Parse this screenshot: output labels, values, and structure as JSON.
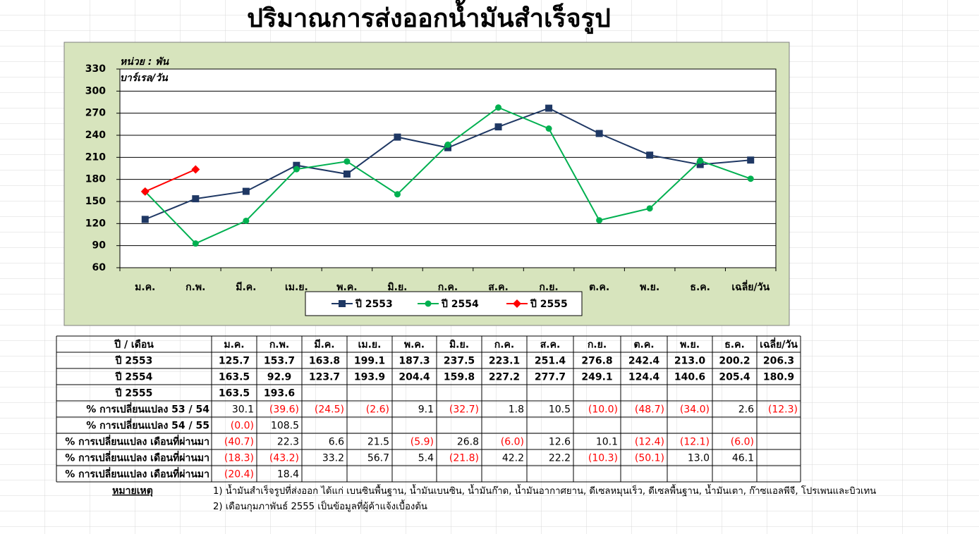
{
  "chart_data": {
    "type": "line",
    "title": "ปริมาณการส่งออกน้ำมันสำเร็จรูป",
    "unit_label": [
      "หน่วย  : พัน",
      "บาร์เรล/วัน"
    ],
    "categories": [
      "ม.ค.",
      "ก.พ.",
      "มี.ค.",
      "เม.ย.",
      "พ.ค.",
      "มิ.ย.",
      "ก.ค.",
      "ส.ค.",
      "ก.ย.",
      "ต.ค.",
      "พ.ย.",
      "ธ.ค.",
      "เฉลี่ย/วัน"
    ],
    "series": [
      {
        "name": "ปี  2553",
        "color": "#1f3864",
        "marker": "square",
        "values": [
          125.7,
          153.7,
          163.8,
          199.1,
          187.3,
          237.5,
          223.1,
          251.4,
          276.8,
          242.4,
          213.0,
          200.2,
          206.3
        ]
      },
      {
        "name": "ปี  2554",
        "color": "#00b050",
        "marker": "circle",
        "values": [
          163.5,
          92.9,
          123.7,
          193.9,
          204.4,
          159.8,
          227.2,
          277.7,
          249.1,
          124.4,
          140.6,
          205.4,
          180.9
        ]
      },
      {
        "name": "ปี  2555",
        "color": "#ff0000",
        "marker": "diamond",
        "values": [
          163.5,
          193.6,
          null,
          null,
          null,
          null,
          null,
          null,
          null,
          null,
          null,
          null,
          null
        ]
      }
    ],
    "ylim": [
      60,
      330
    ],
    "yticks": [
      60,
      90,
      120,
      150,
      180,
      210,
      240,
      270,
      300,
      330
    ],
    "grid": true,
    "legend": "bottom"
  },
  "table": {
    "header": [
      "ปี / เดือน",
      "ม.ค.",
      "ก.พ.",
      "มี.ค.",
      "เม.ย.",
      "พ.ค.",
      "มิ.ย.",
      "ก.ค.",
      "ส.ค.",
      "ก.ย.",
      "ต.ค.",
      "พ.ย.",
      "ธ.ค.",
      "เฉลี่ย/วัน"
    ],
    "rows": [
      {
        "label": "ปี 2553",
        "cells": [
          "125.7",
          "153.7",
          "163.8",
          "199.1",
          "187.3",
          "237.5",
          "223.1",
          "251.4",
          "276.8",
          "242.4",
          "213.0",
          "200.2",
          "206.3"
        ]
      },
      {
        "label": "ปี 2554",
        "cells": [
          "163.5",
          "92.9",
          "123.7",
          "193.9",
          "204.4",
          "159.8",
          "227.2",
          "277.7",
          "249.1",
          "124.4",
          "140.6",
          "205.4",
          "180.9"
        ]
      },
      {
        "label": "ปี 2555",
        "cells": [
          "163.5",
          "193.6"
        ]
      },
      {
        "label": "% การเปลี่ยนแปลง 53 / 54",
        "cells": [
          "30.1",
          "(39.6)",
          "(24.5)",
          "(2.6)",
          "9.1",
          "(32.7)",
          "1.8",
          "10.5",
          "(10.0)",
          "(48.7)",
          "(34.0)",
          "2.6",
          "(12.3)"
        ]
      },
      {
        "label": "% การเปลี่ยนแปลง 54 / 55",
        "cells": [
          "(0.0)",
          "108.5"
        ]
      },
      {
        "label": "% การเปลี่ยนแปลง เดือนที่ผ่านมา",
        "cells": [
          "(40.7)",
          "22.3",
          "6.6",
          "21.5",
          "(5.9)",
          "26.8",
          "(6.0)",
          "12.6",
          "10.1",
          "(12.4)",
          "(12.1)",
          "(6.0)"
        ]
      },
      {
        "label": "% การเปลี่ยนแปลง เดือนที่ผ่านมา",
        "cells": [
          "(18.3)",
          "(43.2)",
          "33.2",
          "56.7",
          "5.4",
          "(21.8)",
          "42.2",
          "22.2",
          "(10.3)",
          "(50.1)",
          "13.0",
          "46.1"
        ]
      },
      {
        "label": "% การเปลี่ยนแปลง เดือนที่ผ่านมา",
        "cells": [
          "(20.4)",
          "18.4"
        ]
      }
    ]
  },
  "notes": {
    "heading": "หมายเหตุ",
    "items": [
      "1)  น้ำมันสำเร็จรูปที่ส่งออก ได้แก่ เบนซินพื้นฐาน, น้ำมันเบนซิน, น้ำมันก๊าด, น้ำมันอากาศยาน, ดีเซลหมุนเร็ว, ดีเซลพื้นฐาน, น้ำมันเตา, ก๊าซแอลพีจี, โปรเพนและบิวเทน",
      "2)  เดือนกุมภาพันธ์ 2555 เป็นข้อมูลที่ผู้ค้าแจ้งเบื้องต้น"
    ]
  }
}
